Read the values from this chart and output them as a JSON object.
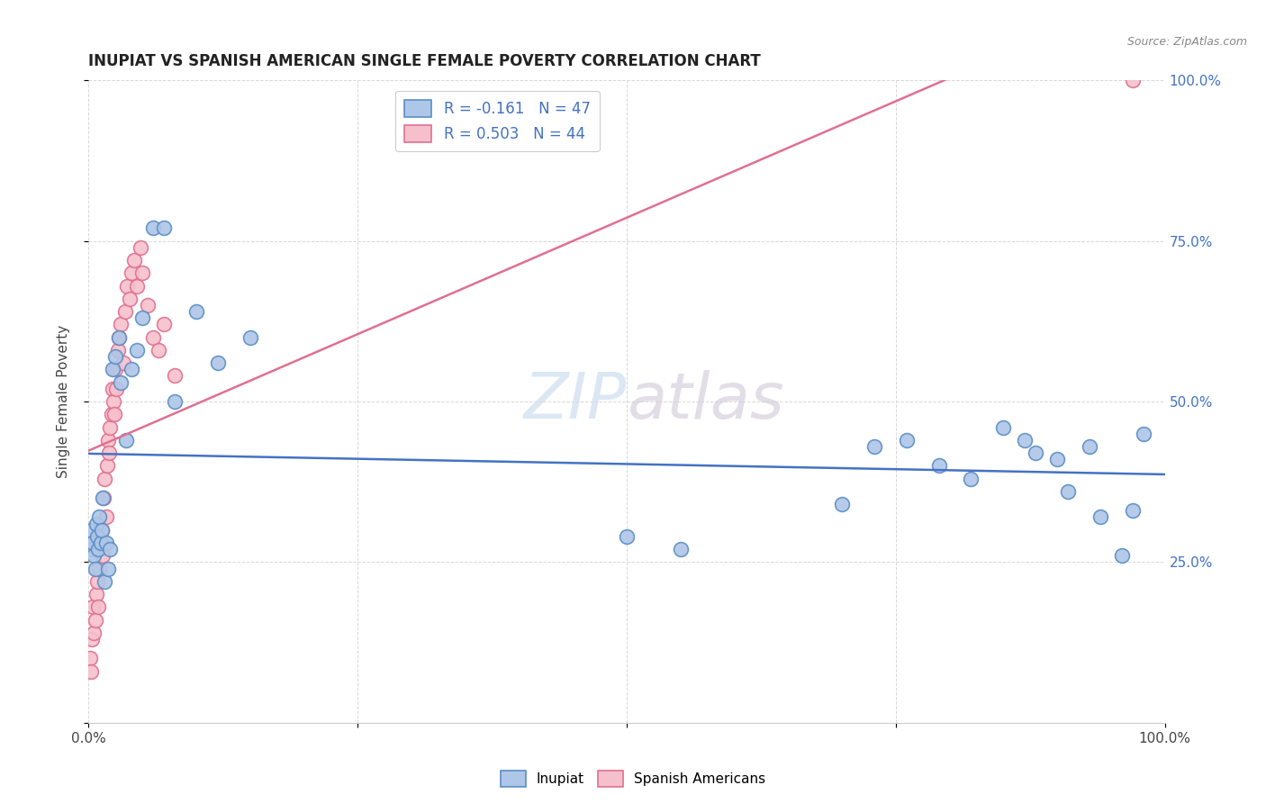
{
  "title": "INUPIAT VS SPANISH AMERICAN SINGLE FEMALE POVERTY CORRELATION CHART",
  "source": "Source: ZipAtlas.com",
  "ylabel": "Single Female Poverty",
  "xlim": [
    0,
    1
  ],
  "ylim": [
    0,
    1
  ],
  "inupiat_color": "#aec6e8",
  "inupiat_edge_color": "#5b8ec4",
  "spanish_color": "#f5c0cc",
  "spanish_edge_color": "#e07090",
  "inupiat_line_color": "#4472c4",
  "spanish_line_color": "#e07090",
  "legend_label_blue": "R = -0.161   N = 47",
  "legend_label_pink": "R = 0.503   N = 44",
  "legend_text_color": "#4472c4",
  "watermark": "ZIPatlas",
  "background_color": "#ffffff",
  "inupiat_x": [
    0.002,
    0.003,
    0.004,
    0.005,
    0.006,
    0.007,
    0.008,
    0.009,
    0.01,
    0.011,
    0.012,
    0.013,
    0.015,
    0.016,
    0.018,
    0.02,
    0.022,
    0.025,
    0.028,
    0.03,
    0.035,
    0.04,
    0.045,
    0.05,
    0.06,
    0.07,
    0.08,
    0.1,
    0.12,
    0.15,
    0.5,
    0.55,
    0.7,
    0.73,
    0.76,
    0.79,
    0.82,
    0.85,
    0.87,
    0.88,
    0.9,
    0.91,
    0.93,
    0.94,
    0.96,
    0.97,
    0.98
  ],
  "inupiat_y": [
    0.3,
    0.27,
    0.28,
    0.26,
    0.24,
    0.31,
    0.29,
    0.27,
    0.32,
    0.28,
    0.3,
    0.35,
    0.22,
    0.28,
    0.24,
    0.27,
    0.55,
    0.57,
    0.6,
    0.53,
    0.44,
    0.55,
    0.58,
    0.63,
    0.77,
    0.77,
    0.5,
    0.64,
    0.56,
    0.6,
    0.29,
    0.27,
    0.34,
    0.43,
    0.44,
    0.4,
    0.38,
    0.46,
    0.44,
    0.42,
    0.41,
    0.36,
    0.43,
    0.32,
    0.26,
    0.33,
    0.45
  ],
  "spanish_x": [
    0.001,
    0.002,
    0.003,
    0.004,
    0.005,
    0.006,
    0.007,
    0.008,
    0.009,
    0.01,
    0.011,
    0.012,
    0.013,
    0.014,
    0.015,
    0.016,
    0.017,
    0.018,
    0.019,
    0.02,
    0.021,
    0.022,
    0.023,
    0.024,
    0.025,
    0.026,
    0.027,
    0.028,
    0.03,
    0.032,
    0.034,
    0.036,
    0.038,
    0.04,
    0.042,
    0.045,
    0.048,
    0.05,
    0.055,
    0.06,
    0.065,
    0.07,
    0.08,
    0.97
  ],
  "spanish_y": [
    0.1,
    0.08,
    0.13,
    0.18,
    0.14,
    0.16,
    0.2,
    0.22,
    0.18,
    0.24,
    0.28,
    0.3,
    0.26,
    0.35,
    0.38,
    0.32,
    0.4,
    0.44,
    0.42,
    0.46,
    0.48,
    0.52,
    0.5,
    0.48,
    0.55,
    0.52,
    0.58,
    0.6,
    0.62,
    0.56,
    0.64,
    0.68,
    0.66,
    0.7,
    0.72,
    0.68,
    0.74,
    0.7,
    0.65,
    0.6,
    0.58,
    0.62,
    0.54,
    1.0
  ]
}
